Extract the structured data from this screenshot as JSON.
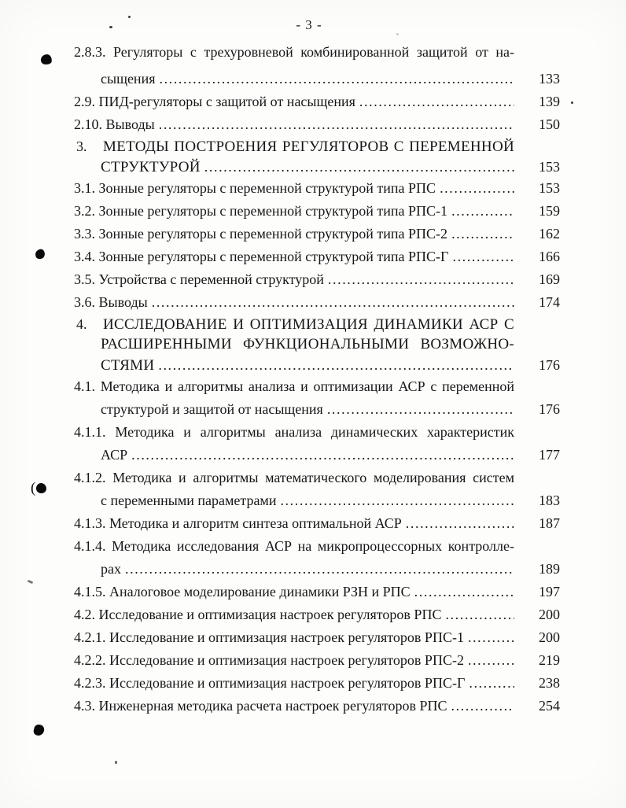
{
  "header": {
    "page_label": "- 3 -"
  },
  "toc": {
    "lines": [
      {
        "style": "entry-wrap",
        "text": "2.8.3. Регуляторы с трехуровневой комбинированной защитой от на-"
      },
      {
        "style": "cont-dots",
        "text": "сыщения",
        "page": "133"
      },
      {
        "style": "entry-dots",
        "text": "2.9. ПИД-регуляторы с защитой от насыщения",
        "page": "139"
      },
      {
        "style": "entry-dots",
        "text": "2.10. Выводы",
        "page": "150"
      },
      {
        "style": "section-wrap",
        "num": "3.",
        "text": "МЕТОДЫ ПОСТРОЕНИЯ РЕГУЛЯТОРОВ С ПЕРЕМЕННОЙ"
      },
      {
        "style": "section-cont-dots",
        "text": "СТРУКТУРОЙ",
        "page": "153"
      },
      {
        "style": "entry-dots",
        "text": "3.1. Зонные регуляторы с переменной структурой типа РПС",
        "page": "153"
      },
      {
        "style": "entry-dots",
        "text": "3.2. Зонные регуляторы с переменной структурой типа РПС-1",
        "page": "159"
      },
      {
        "style": "entry-dots",
        "text": "3.3. Зонные регуляторы с переменной структурой типа РПС-2",
        "page": "162"
      },
      {
        "style": "entry-dots",
        "text": "3.4. Зонные регуляторы с переменной структурой типа РПС-Г",
        "page": "166"
      },
      {
        "style": "entry-dots",
        "text": "3.5. Устройства с переменной структурой",
        "page": "169"
      },
      {
        "style": "entry-dots",
        "text": "3.6. Выводы",
        "page": "174"
      },
      {
        "style": "section-wrap",
        "num": "4.",
        "text": "ИССЛЕДОВАНИЕ И ОПТИМИЗАЦИЯ ДИНАМИКИ АСР С"
      },
      {
        "style": "section-wrap-cont",
        "text": "РАСШИРЕННЫМИ ФУНКЦИОНАЛЬНЫМИ ВОЗМОЖНО-"
      },
      {
        "style": "section-cont-dots",
        "text": "СТЯМИ",
        "page": "176"
      },
      {
        "style": "entry-wrap",
        "text": "4.1. Методика и алгоритмы анализа и оптимизации АСР с переменной"
      },
      {
        "style": "cont-dots",
        "text": "структурой и защитой от насыщения",
        "page": "176"
      },
      {
        "style": "entry-wrap",
        "text": "4.1.1. Методика и алгоритмы анализа динамических характеристик"
      },
      {
        "style": "cont-dots",
        "text": "АСР",
        "page": "177"
      },
      {
        "style": "entry-wrap",
        "text": "4.1.2. Методика и алгоритмы математического моделирования систем"
      },
      {
        "style": "cont-dots",
        "text": "с переменными параметрами",
        "page": "183"
      },
      {
        "style": "entry-dots",
        "text": "4.1.3. Методика и алгоритм синтеза оптимальной АСР",
        "page": "187"
      },
      {
        "style": "entry-wrap",
        "text": "4.1.4. Методика исследования АСР на микропроцессорных контролле-"
      },
      {
        "style": "cont-dots",
        "text": "рах",
        "page": "189"
      },
      {
        "style": "entry-dots",
        "text": "4.1.5. Аналоговое моделирование динамики РЗН и РПС",
        "page": "197"
      },
      {
        "style": "entry-dots",
        "text": "4.2. Исследование и оптимизация настроек регуляторов РПС",
        "page": "200"
      },
      {
        "style": "entry-dots",
        "text": "4.2.1. Исследование и оптимизация настроек регуляторов РПС-1",
        "page": "200"
      },
      {
        "style": "entry-dots",
        "text": "4.2.2. Исследование и оптимизация настроек регуляторов РПС-2",
        "page": "219"
      },
      {
        "style": "entry-dots",
        "text": "4.2.3. Исследование и оптимизация настроек регуляторов РПС-Г",
        "page": "238"
      },
      {
        "style": "entry-dots",
        "text": "4.3. Инженерная методика расчета настроек регуляторов РПС",
        "page": "254"
      }
    ]
  }
}
